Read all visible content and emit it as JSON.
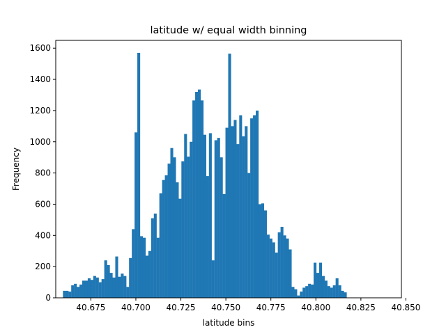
{
  "chart_data": {
    "type": "bar",
    "title": "latitude w/ equal width binning",
    "xlabel": "latitude bins",
    "ylabel": "Frequency",
    "xlim": [
      40.6555,
      40.8475
    ],
    "ylim": [
      0,
      1650
    ],
    "xticks": [
      40.675,
      40.7,
      40.725,
      40.75,
      40.775,
      40.8,
      40.825,
      40.85
    ],
    "xtick_labels": [
      "40.675",
      "40.700",
      "40.725",
      "40.750",
      "40.775",
      "40.800",
      "40.825",
      "40.850"
    ],
    "yticks": [
      0,
      200,
      400,
      600,
      800,
      1000,
      1200,
      1400,
      1600
    ],
    "ytick_labels": [
      "0",
      "200",
      "400",
      "600",
      "800",
      "1000",
      "1200",
      "1400",
      "1600"
    ],
    "grid": false,
    "bar_color": "#1f77b4",
    "bin_start": 40.6595,
    "bin_width": 0.00153,
    "values": [
      45,
      45,
      40,
      80,
      90,
      70,
      85,
      110,
      110,
      125,
      115,
      140,
      130,
      100,
      120,
      240,
      210,
      160,
      130,
      265,
      135,
      155,
      140,
      70,
      255,
      440,
      1060,
      1570,
      395,
      385,
      270,
      300,
      510,
      540,
      385,
      670,
      755,
      785,
      860,
      960,
      900,
      740,
      635,
      875,
      1050,
      905,
      1000,
      1265,
      1320,
      1335,
      1265,
      1045,
      780,
      1055,
      240,
      1010,
      1025,
      900,
      665,
      1090,
      1565,
      1100,
      1140,
      985,
      1170,
      1035,
      1100,
      800,
      1150,
      1170,
      1200,
      600,
      605,
      560,
      405,
      380,
      355,
      290,
      420,
      455,
      400,
      380,
      310,
      70,
      55,
      15,
      40,
      65,
      75,
      90,
      85,
      225,
      160,
      225,
      140,
      110,
      75,
      65,
      80,
      125,
      80,
      45,
      35
    ]
  }
}
